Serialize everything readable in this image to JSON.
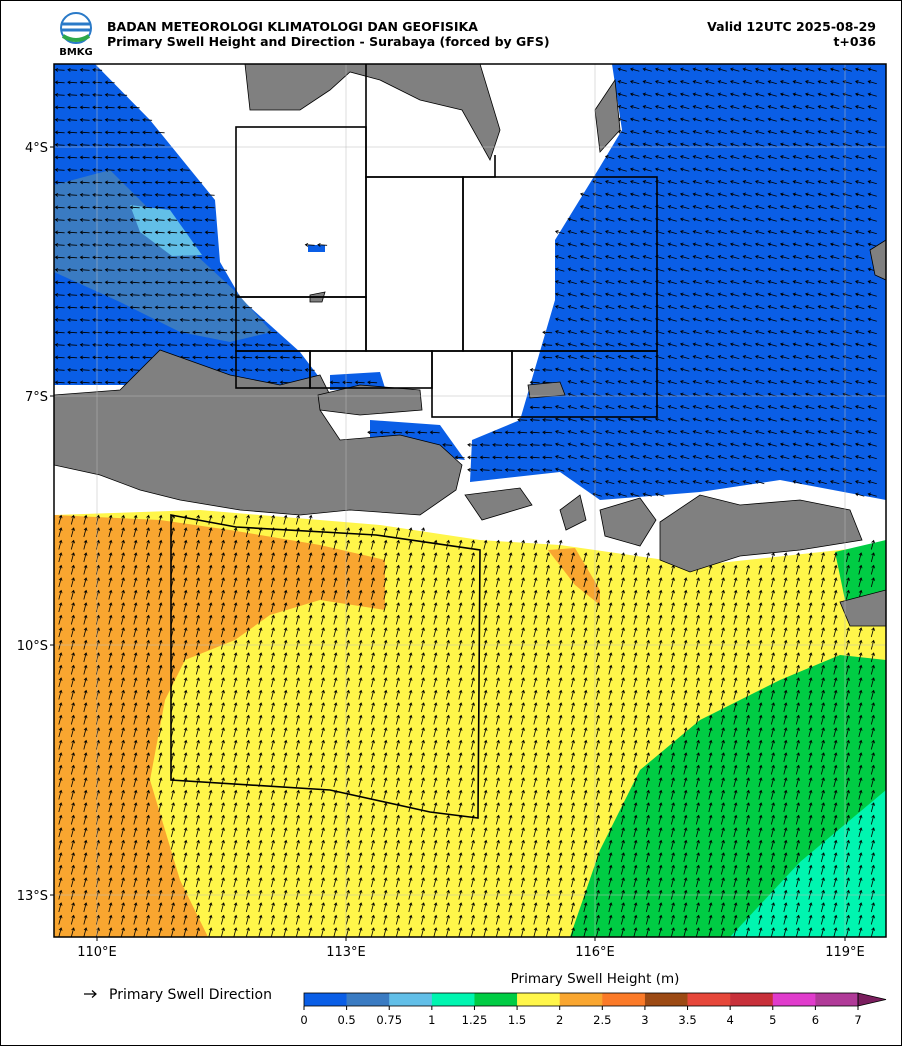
{
  "header": {
    "logo": "BMKG",
    "org": "BADAN METEOROLOGI KLIMATOLOGI DAN GEOFISIKA",
    "title": "Primary Swell Height and Direction - Surabaya (forced by GFS)",
    "valid": "Valid 12UTC 2025-08-29",
    "lead": "t+036"
  },
  "map": {
    "lat_ticks": [
      "4°S",
      "7°S",
      "10°S",
      "13°S"
    ],
    "lon_ticks": [
      "110°E",
      "113°E",
      "116°E",
      "119°E"
    ]
  },
  "legend": {
    "arrow_label": "Primary Swell Direction"
  },
  "colorbar": {
    "title": "Primary Swell Height (m)",
    "levels": [
      0,
      0.5,
      0.75,
      1,
      1.25,
      1.5,
      2,
      2.5,
      3,
      3.5,
      4,
      5,
      6,
      7
    ],
    "colors": [
      "#0a5ee6",
      "#3a7bc2",
      "#62bfe8",
      "#00f5b0",
      "#00cc44",
      "#fff64a",
      "#f9a630",
      "#fb7a28",
      "#9c4a14",
      "#e6473a",
      "#c8303a",
      "#e03ccc",
      "#b03a98",
      "#7a1e5e"
    ]
  }
}
